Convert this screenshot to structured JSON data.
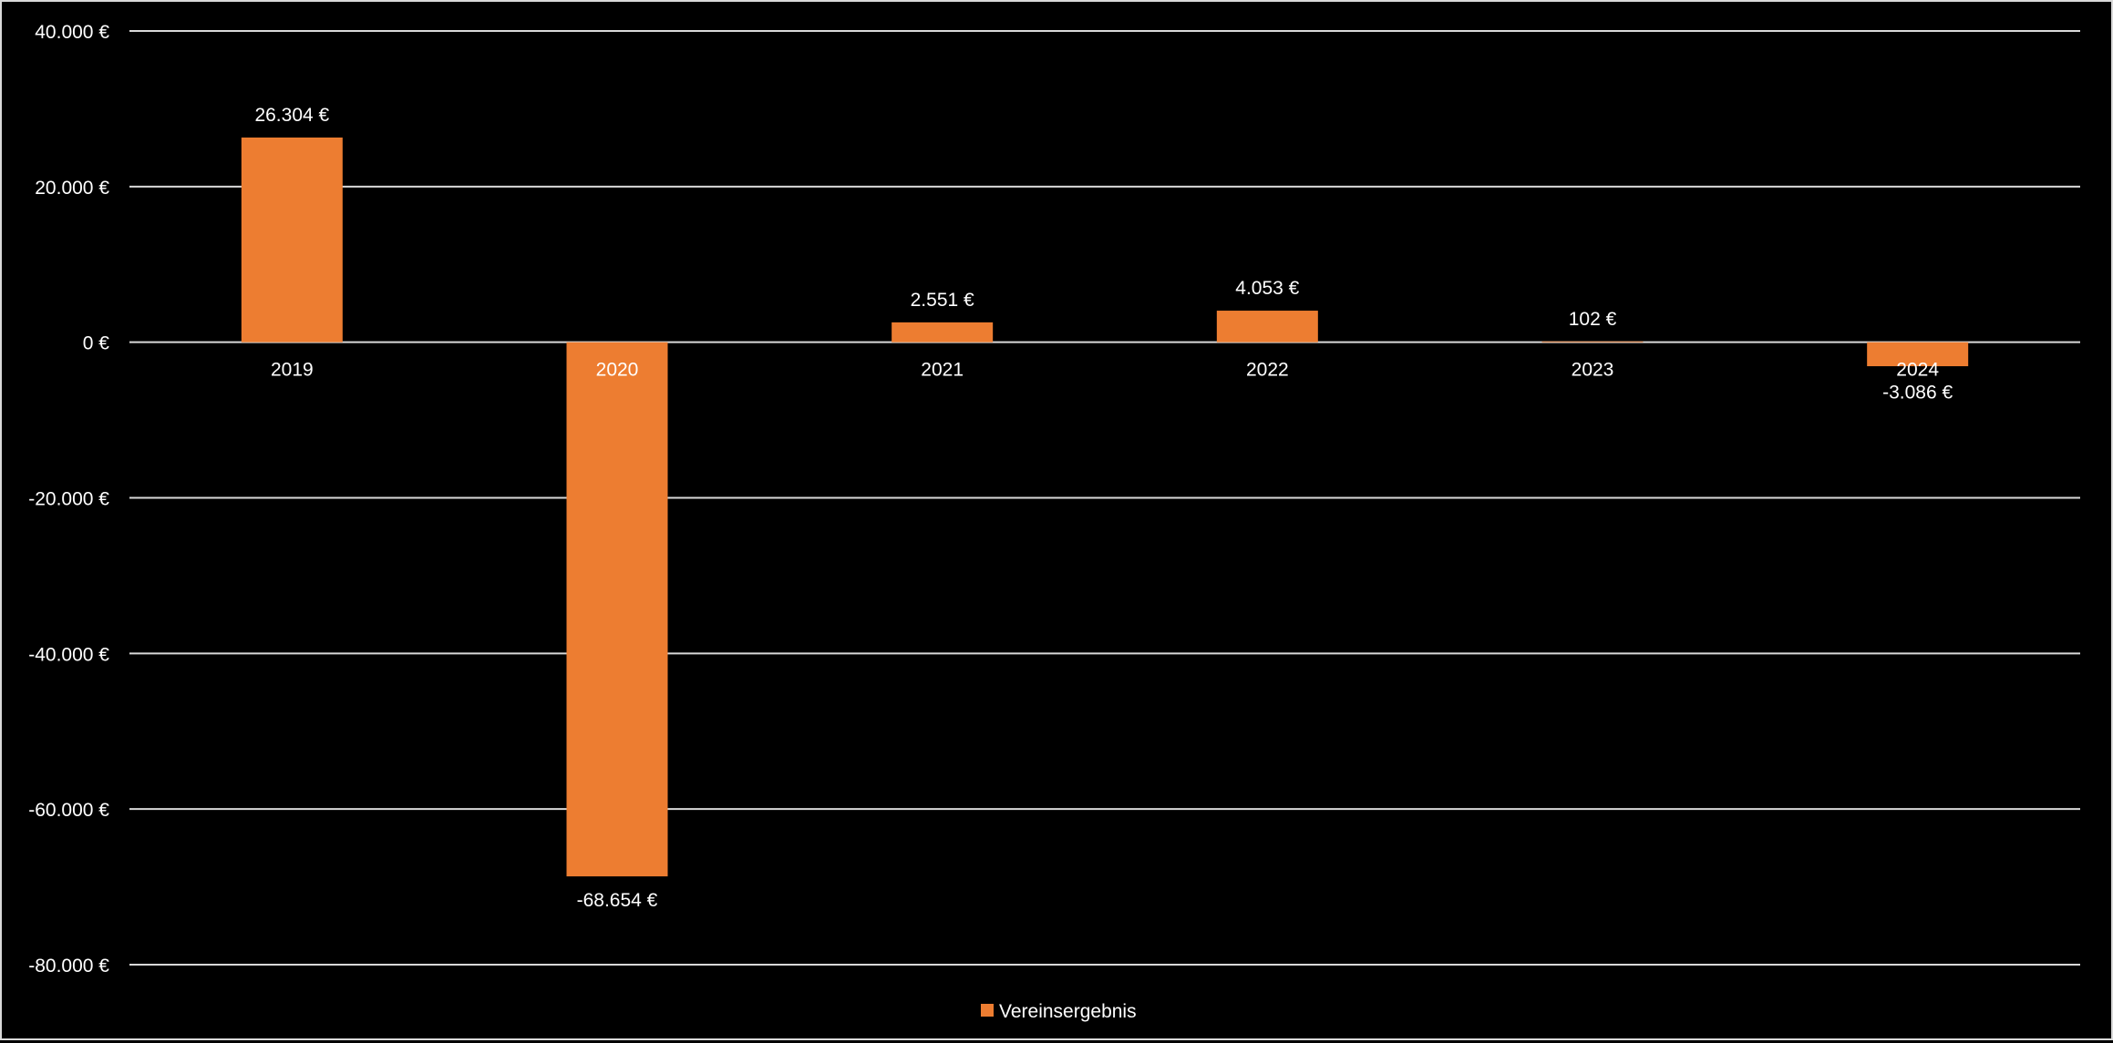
{
  "chart_data": {
    "type": "bar",
    "categories": [
      "2019",
      "2020",
      "2021",
      "2022",
      "2023",
      "2024"
    ],
    "series": [
      {
        "name": "Vereinsergebnis",
        "values": [
          26304,
          -68654,
          2551,
          4053,
          102,
          -3086
        ],
        "data_labels": [
          "26.304 €",
          "-68.654 €",
          "2.551 €",
          "4.053 €",
          "102 €",
          "-3.086 €"
        ]
      }
    ],
    "y_ticks": [
      {
        "value": 40000,
        "label": "40.000 €"
      },
      {
        "value": 20000,
        "label": "20.000 €"
      },
      {
        "value": 0,
        "label": "0 €"
      },
      {
        "value": -20000,
        "label": "-20.000 €"
      },
      {
        "value": -40000,
        "label": "-40.000 €"
      },
      {
        "value": -60000,
        "label": "-60.000 €"
      },
      {
        "value": -80000,
        "label": "-80.000 €"
      }
    ],
    "ylim": [
      -80000,
      40000
    ],
    "grid": true,
    "legend_position": "bottom-center",
    "title": "",
    "xlabel": "",
    "ylabel": "",
    "colors": {
      "bar": "#ED7D31",
      "background": "#000000",
      "text": "#FFFFFF",
      "grid": "#D9D9D9"
    }
  }
}
